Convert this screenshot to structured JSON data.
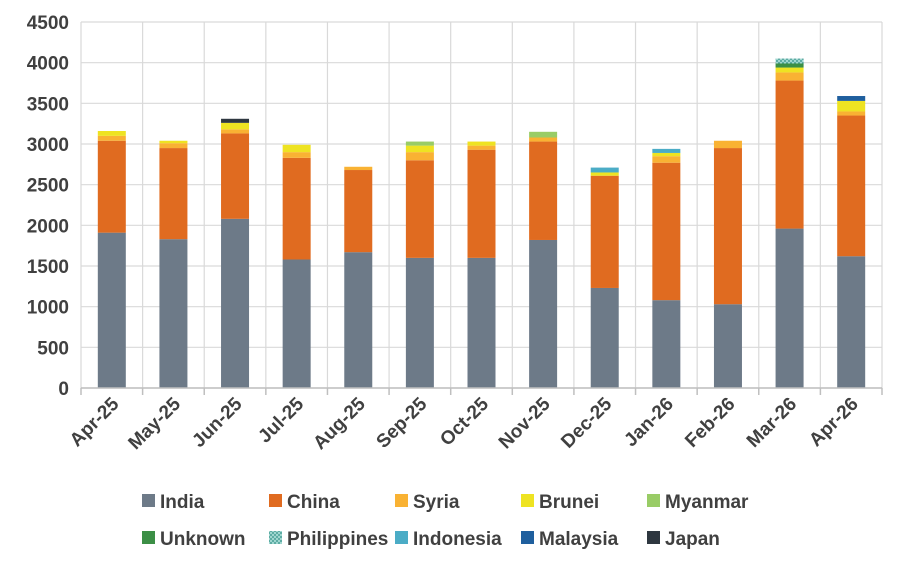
{
  "chart_data": {
    "type": "bar",
    "stacked": true,
    "title": "",
    "xlabel": "",
    "ylabel": "",
    "ylim": [
      0,
      4500
    ],
    "yticks": [
      0,
      500,
      1000,
      1500,
      2000,
      2500,
      3000,
      3500,
      4000,
      4500
    ],
    "grid": true,
    "legend_position": "bottom",
    "categories": [
      "Apr-25",
      "May-25",
      "Jun-25",
      "Jul-25",
      "Aug-25",
      "Sep-25",
      "Oct-25",
      "Nov-25",
      "Dec-25",
      "Jan-26",
      "Feb-26",
      "Mar-26",
      "Apr-26"
    ],
    "series": [
      {
        "name": "India",
        "color": "#6d7a88",
        "pattern": "solid",
        "values": [
          1910,
          1830,
          2080,
          1580,
          1670,
          1600,
          1600,
          1820,
          1230,
          1080,
          1030,
          1960,
          1620
        ]
      },
      {
        "name": "China",
        "color": "#e06b20",
        "pattern": "solid",
        "values": [
          1130,
          1120,
          1050,
          1250,
          1010,
          1200,
          1330,
          1210,
          1380,
          1690,
          1920,
          1820,
          1730
        ]
      },
      {
        "name": "Syria",
        "color": "#f9b233",
        "pattern": "solid",
        "values": [
          60,
          60,
          50,
          70,
          40,
          100,
          50,
          50,
          0,
          80,
          90,
          100,
          50
        ]
      },
      {
        "name": "Brunei",
        "color": "#eee322",
        "pattern": "solid",
        "values": [
          60,
          30,
          80,
          90,
          0,
          80,
          50,
          0,
          40,
          40,
          0,
          60,
          130
        ]
      },
      {
        "name": "Myanmar",
        "color": "#99cc66",
        "pattern": "solid",
        "values": [
          0,
          0,
          0,
          0,
          0,
          50,
          0,
          70,
          0,
          0,
          0,
          0,
          0
        ]
      },
      {
        "name": "Unknown",
        "color": "#3c8f46",
        "pattern": "solid",
        "values": [
          0,
          0,
          0,
          0,
          0,
          0,
          0,
          0,
          0,
          0,
          0,
          50,
          0
        ]
      },
      {
        "name": "Philippines",
        "color": "#5fb5ad",
        "pattern": "dotted",
        "values": [
          0,
          0,
          0,
          0,
          0,
          0,
          0,
          0,
          0,
          0,
          0,
          60,
          0
        ]
      },
      {
        "name": "Indonesia",
        "color": "#4bacc6",
        "pattern": "solid",
        "values": [
          0,
          0,
          0,
          0,
          0,
          0,
          0,
          0,
          60,
          50,
          0,
          0,
          0
        ]
      },
      {
        "name": "Malaysia",
        "color": "#1f5f9e",
        "pattern": "solid",
        "values": [
          0,
          0,
          0,
          0,
          0,
          0,
          0,
          0,
          0,
          0,
          0,
          0,
          60
        ]
      },
      {
        "name": "Japan",
        "color": "#2e3740",
        "pattern": "solid",
        "values": [
          0,
          0,
          50,
          0,
          0,
          0,
          0,
          0,
          0,
          0,
          0,
          0,
          0
        ]
      }
    ]
  }
}
